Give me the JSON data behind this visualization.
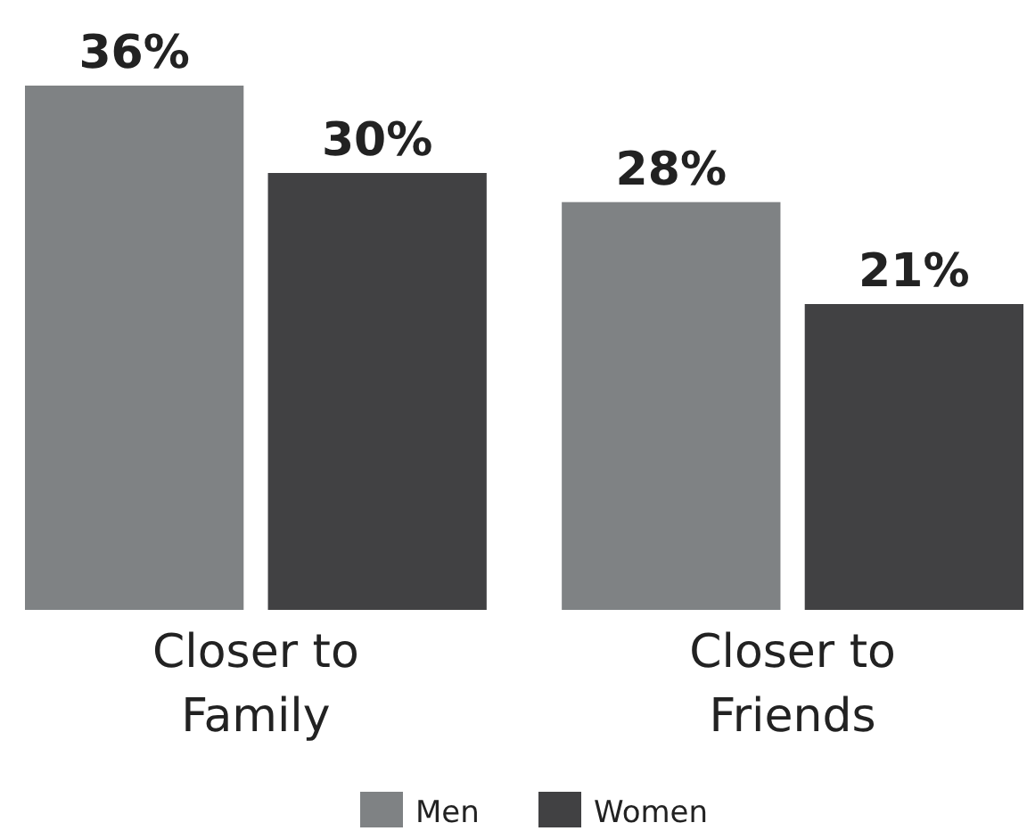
{
  "chart_data": {
    "type": "bar",
    "categories": [
      "Closer to Family",
      "Closer to Friends"
    ],
    "series": [
      {
        "name": "Men",
        "color": "#7f8284",
        "values": [
          36,
          28
        ],
        "value_labels": [
          "36%",
          "28%"
        ]
      },
      {
        "name": "Women",
        "color": "#414143",
        "values": [
          30,
          21
        ],
        "value_labels": [
          "30%",
          "21%"
        ]
      }
    ],
    "legend": "bottom",
    "grid": false
  }
}
